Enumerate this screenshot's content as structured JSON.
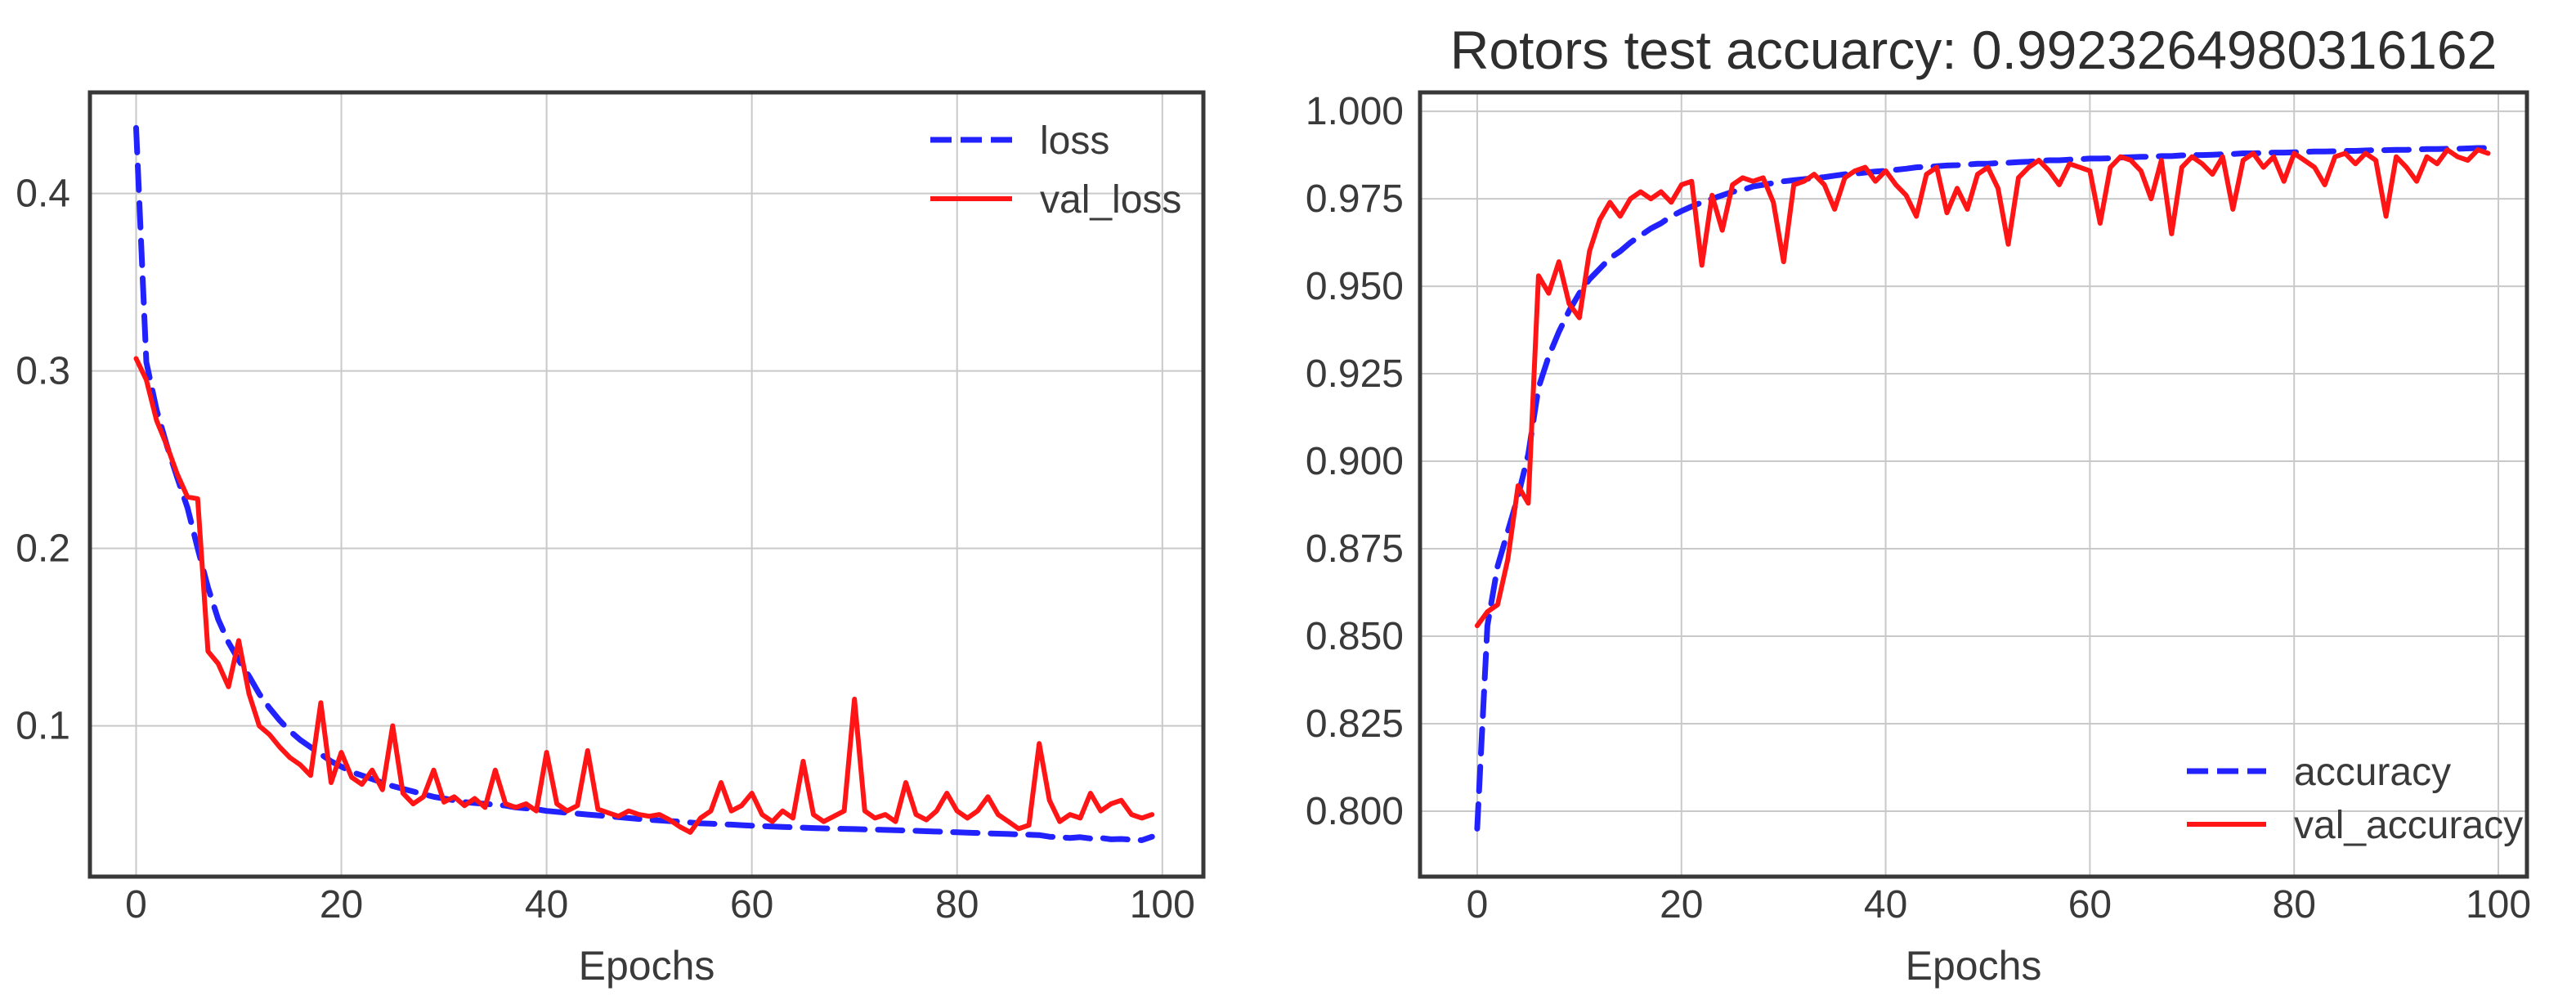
{
  "figure": {
    "background": "#ffffff",
    "grid_color": "#c9c9c9",
    "spine_color": "#383838",
    "text_color": "#3a3a3a"
  },
  "chart_data": [
    {
      "type": "line",
      "title": "",
      "xlabel": "Epochs",
      "x_start": 0,
      "x_step": 1,
      "x_ticks": [
        0,
        20,
        40,
        60,
        80,
        100
      ],
      "x_tick_labels": [
        "0",
        "20",
        "40",
        "60",
        "80",
        "100"
      ],
      "y_ticks": [
        0.1,
        0.2,
        0.3,
        0.4
      ],
      "y_tick_labels": [
        "0.1",
        "0.2",
        "0.3",
        "0.4"
      ],
      "xlim": [
        -4.5,
        104
      ],
      "ylim": [
        0.015,
        0.457
      ],
      "grid": true,
      "legend_position": "upper right",
      "series": [
        {
          "name": "loss",
          "color": "#2222ff",
          "style": "dashed",
          "values": [
            0.437,
            0.305,
            0.278,
            0.258,
            0.24,
            0.223,
            0.2,
            0.178,
            0.16,
            0.147,
            0.137,
            0.128,
            0.118,
            0.11,
            0.103,
            0.097,
            0.092,
            0.088,
            0.084,
            0.08,
            0.077,
            0.074,
            0.072,
            0.07,
            0.068,
            0.066,
            0.0645,
            0.063,
            0.0615,
            0.06,
            0.059,
            0.058,
            0.057,
            0.0565,
            0.056,
            0.0555,
            0.055,
            0.054,
            0.0535,
            0.053,
            0.052,
            0.0515,
            0.051,
            0.0505,
            0.05,
            0.0495,
            0.049,
            0.0485,
            0.048,
            0.0475,
            0.047,
            0.0467,
            0.0463,
            0.046,
            0.0455,
            0.045,
            0.0448,
            0.0445,
            0.0443,
            0.044,
            0.0437,
            0.0435,
            0.0432,
            0.043,
            0.0428,
            0.0426,
            0.0424,
            0.0422,
            0.042,
            0.0419,
            0.0418,
            0.0416,
            0.0415,
            0.0413,
            0.0412,
            0.041,
            0.0408,
            0.0406,
            0.0404,
            0.0402,
            0.04,
            0.0398,
            0.0396,
            0.0394,
            0.0392,
            0.039,
            0.0388,
            0.0386,
            0.0384,
            0.0375,
            0.0372,
            0.0368,
            0.0372,
            0.0365,
            0.0368,
            0.036,
            0.0362,
            0.0358,
            0.0355,
            0.0375
          ]
        },
        {
          "name": "val_loss",
          "color": "#ff1515",
          "style": "solid",
          "values": [
            0.307,
            0.295,
            0.272,
            0.258,
            0.242,
            0.229,
            0.228,
            0.142,
            0.135,
            0.122,
            0.148,
            0.118,
            0.1,
            0.095,
            0.088,
            0.082,
            0.078,
            0.072,
            0.113,
            0.068,
            0.085,
            0.071,
            0.067,
            0.075,
            0.064,
            0.1,
            0.062,
            0.056,
            0.06,
            0.075,
            0.057,
            0.06,
            0.055,
            0.059,
            0.054,
            0.075,
            0.056,
            0.054,
            0.056,
            0.052,
            0.085,
            0.056,
            0.052,
            0.055,
            0.086,
            0.053,
            0.051,
            0.049,
            0.052,
            0.05,
            0.049,
            0.05,
            0.047,
            0.043,
            0.04,
            0.048,
            0.052,
            0.068,
            0.052,
            0.055,
            0.062,
            0.05,
            0.046,
            0.052,
            0.048,
            0.08,
            0.05,
            0.046,
            0.049,
            0.052,
            0.115,
            0.052,
            0.048,
            0.05,
            0.046,
            0.068,
            0.05,
            0.047,
            0.052,
            0.062,
            0.052,
            0.048,
            0.052,
            0.06,
            0.05,
            0.046,
            0.042,
            0.044,
            0.09,
            0.058,
            0.046,
            0.05,
            0.048,
            0.062,
            0.052,
            0.056,
            0.058,
            0.05,
            0.048,
            0.05
          ]
        }
      ]
    },
    {
      "type": "line",
      "title": "Rotors test accuarcy: 0.9923264980316162",
      "xlabel": "Epochs",
      "x_start": 0,
      "x_step": 1,
      "x_ticks": [
        0,
        20,
        40,
        60,
        80,
        100
      ],
      "x_tick_labels": [
        "0",
        "20",
        "40",
        "60",
        "80",
        "100"
      ],
      "y_ticks": [
        0.8,
        0.825,
        0.85,
        0.875,
        0.9,
        0.925,
        0.95,
        0.975,
        1.0
      ],
      "y_tick_labels": [
        "0.800",
        "0.825",
        "0.850",
        "0.875",
        "0.900",
        "0.925",
        "0.950",
        "0.975",
        "1.000"
      ],
      "xlim": [
        -5.6,
        102.8
      ],
      "ylim": [
        0.7813,
        1.0054
      ],
      "grid": true,
      "legend_position": "lower right",
      "series": [
        {
          "name": "accuracy",
          "color": "#2222ff",
          "style": "dashed",
          "values": [
            0.795,
            0.853,
            0.87,
            0.88,
            0.89,
            0.902,
            0.921,
            0.93,
            0.937,
            0.943,
            0.948,
            0.952,
            0.955,
            0.958,
            0.96,
            0.9625,
            0.9645,
            0.9665,
            0.968,
            0.97,
            0.9715,
            0.9728,
            0.974,
            0.975,
            0.976,
            0.977,
            0.9775,
            0.9785,
            0.979,
            0.9795,
            0.98,
            0.9803,
            0.9806,
            0.9809,
            0.9812,
            0.9816,
            0.982,
            0.9822,
            0.9825,
            0.9828,
            0.983,
            0.9833,
            0.9836,
            0.984,
            0.9841,
            0.9843,
            0.9845,
            0.9846,
            0.9848,
            0.985,
            0.985,
            0.9852,
            0.9853,
            0.9855,
            0.9856,
            0.9858,
            0.986,
            0.986,
            0.9862,
            0.9863,
            0.9865,
            0.9865,
            0.9866,
            0.9868,
            0.9869,
            0.987,
            0.987,
            0.9872,
            0.9872,
            0.9874,
            0.9875,
            0.9875,
            0.9876,
            0.9877,
            0.9878,
            0.988,
            0.988,
            0.9881,
            0.9882,
            0.9882,
            0.9883,
            0.9884,
            0.9885,
            0.9885,
            0.9886,
            0.9887,
            0.9887,
            0.9888,
            0.9889,
            0.9889,
            0.989,
            0.989,
            0.9891,
            0.9892,
            0.9892,
            0.9893,
            0.9893,
            0.9894,
            0.9895,
            0.9895
          ]
        },
        {
          "name": "val_accuracy",
          "color": "#ff1515",
          "style": "solid",
          "values": [
            0.853,
            0.857,
            0.859,
            0.872,
            0.893,
            0.888,
            0.953,
            0.948,
            0.957,
            0.945,
            0.941,
            0.96,
            0.969,
            0.974,
            0.97,
            0.975,
            0.977,
            0.975,
            0.977,
            0.974,
            0.979,
            0.98,
            0.956,
            0.976,
            0.966,
            0.979,
            0.981,
            0.98,
            0.981,
            0.974,
            0.957,
            0.979,
            0.98,
            0.982,
            0.979,
            0.972,
            0.981,
            0.983,
            0.984,
            0.98,
            0.983,
            0.979,
            0.976,
            0.97,
            0.982,
            0.984,
            0.971,
            0.978,
            0.972,
            0.982,
            0.984,
            0.978,
            0.962,
            0.981,
            0.984,
            0.986,
            0.983,
            0.979,
            0.985,
            0.984,
            0.983,
            0.968,
            0.984,
            0.987,
            0.986,
            0.983,
            0.975,
            0.986,
            0.965,
            0.984,
            0.987,
            0.985,
            0.982,
            0.987,
            0.972,
            0.986,
            0.988,
            0.984,
            0.987,
            0.98,
            0.988,
            0.986,
            0.984,
            0.979,
            0.987,
            0.988,
            0.985,
            0.988,
            0.986,
            0.97,
            0.987,
            0.984,
            0.98,
            0.987,
            0.985,
            0.989,
            0.987,
            0.986,
            0.989,
            0.988
          ]
        }
      ]
    }
  ]
}
